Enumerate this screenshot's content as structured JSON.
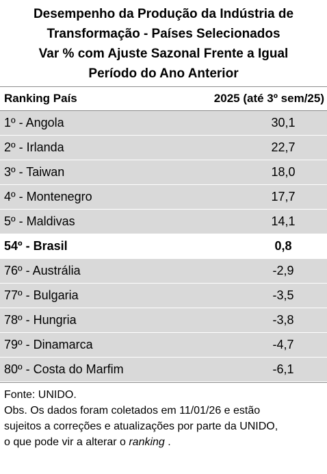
{
  "chart_data": {
    "type": "table",
    "title_lines": [
      "Desempenho da Produção da Indústria de",
      "Transformação - Países Selecionados",
      "Var % com Ajuste Sazonal Frente a Igual",
      "Período do Ano Anterior"
    ],
    "columns": [
      "Ranking País",
      "2025 (até 3º sem/25)"
    ],
    "rows": [
      {
        "label": "1º - Angola",
        "value": "30,1"
      },
      {
        "label": "2º - Irlanda",
        "value": "22,7"
      },
      {
        "label": "3º - Taiwan",
        "value": "18,0"
      },
      {
        "label": "4º - Montenegro",
        "value": "17,7"
      },
      {
        "label": "5º - Maldivas",
        "value": "14,1"
      },
      {
        "label": "54º - Brasil",
        "value": "0,8"
      },
      {
        "label": "76º - Austrália",
        "value": "-2,9"
      },
      {
        "label": "77º - Bulgaria",
        "value": "-3,5"
      },
      {
        "label": "78º - Hungria",
        "value": "-3,8"
      },
      {
        "label": "79º - Dinamarca",
        "value": "-4,7"
      },
      {
        "label": "80º - Costa do Marfim",
        "value": "-6,1"
      }
    ],
    "highlight_row": "54º - Brasil"
  },
  "notes": {
    "source": "Fonte: UNIDO.",
    "obs_line1": "Obs. Os dados foram coletados em 11/01/26 e estão",
    "obs_line2": "sujeitos a correções e atualizações por parte da UNIDO,",
    "obs_line3_prefix": "o que pode vir a alterar o ",
    "obs_line3_italic": "ranking",
    "obs_line3_suffix": " ."
  },
  "colors": {
    "row_fill": "#d9d9d9",
    "highlight_fill": "#ffffff",
    "rule": "#8c8c8c"
  }
}
